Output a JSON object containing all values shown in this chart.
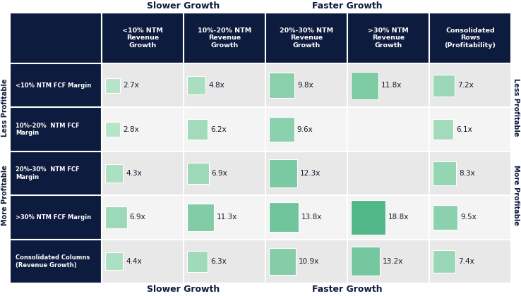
{
  "col_headers": [
    "<10% NTM\nRevenue\nGrowth",
    "10%-20% NTM\nRevenue\nGrowth",
    "20%-30% NTM\nRevenue\nGrowth",
    ">30% NTM\nRevenue\nGrowth",
    "Consolidated\nRows\n(Profitability)"
  ],
  "row_headers": [
    "<10% NTM FCF Margin",
    "10%-20%  NTM FCF\nMargin",
    "20%-30%  NTM FCF\nMargin",
    ">30% NTM FCF Margin",
    "Consolidated Columns\n(Revenue Growth)"
  ],
  "values": [
    [
      2.7,
      4.8,
      9.8,
      11.8,
      7.2
    ],
    [
      2.8,
      6.2,
      9.6,
      null,
      6.1
    ],
    [
      4.3,
      6.9,
      12.3,
      null,
      8.3
    ],
    [
      6.9,
      11.3,
      13.8,
      18.8,
      9.5
    ],
    [
      4.4,
      6.3,
      10.9,
      13.2,
      7.4
    ]
  ],
  "max_value": 18.8,
  "header_bg": "#0d1b3e",
  "header_text": "#ffffff",
  "green_light": "#c8ecd4",
  "green_dark": "#52b788",
  "top_label_slower": "Slower Growth",
  "top_label_faster": "Faster Growth",
  "bottom_label_slower": "Slower Growth",
  "bottom_label_faster": "Faster Growth",
  "left_label_less": "Less Profitable",
  "left_label_more": "More Profitable",
  "right_label_less": "Less Profitable",
  "right_label_more": "More Profitable",
  "row_bgs": [
    "#e8e8e8",
    "#f4f4f4",
    "#e8e8e8",
    "#f4f4f4",
    "#e8e8e8"
  ]
}
